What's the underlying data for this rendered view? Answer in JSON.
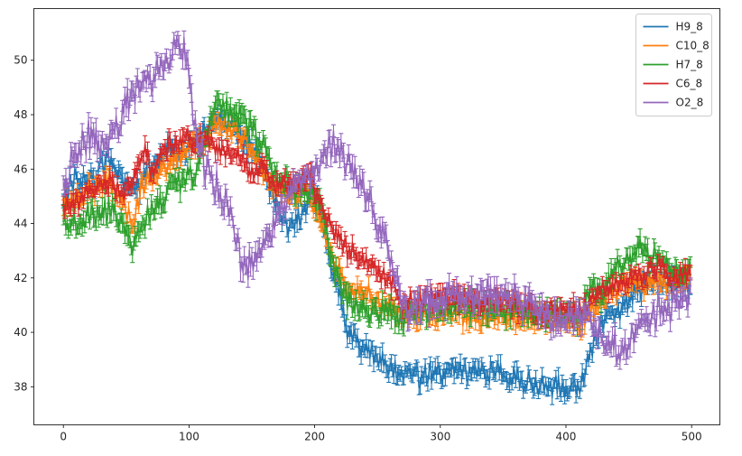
{
  "chart_data": {
    "type": "line",
    "title": "",
    "xlabel": "",
    "ylabel": "",
    "xlim": [
      -23.5,
      522.5
    ],
    "ylim": [
      36.6,
      51.9
    ],
    "xticks": [
      0,
      100,
      200,
      300,
      400,
      500
    ],
    "yticks": [
      38,
      40,
      42,
      44,
      46,
      48,
      50
    ],
    "grid": false,
    "error_bars": true,
    "legend_position": "top-right",
    "n_points": 500,
    "series": [
      {
        "name": "H9_8",
        "color": "#1f77b4",
        "anchors": [
          [
            0,
            45.0
          ],
          [
            12,
            45.8
          ],
          [
            24,
            45.6
          ],
          [
            36,
            46.4
          ],
          [
            48,
            45.6
          ],
          [
            60,
            45.3
          ],
          [
            72,
            46.2
          ],
          [
            84,
            46.8
          ],
          [
            96,
            46.6
          ],
          [
            110,
            47.2
          ],
          [
            122,
            47.8
          ],
          [
            134,
            47.6
          ],
          [
            146,
            47.0
          ],
          [
            158,
            46.4
          ],
          [
            170,
            44.6
          ],
          [
            180,
            43.8
          ],
          [
            190,
            44.2
          ],
          [
            200,
            45.2
          ],
          [
            208,
            43.8
          ],
          [
            214,
            42.4
          ],
          [
            220,
            41.6
          ],
          [
            226,
            40.0
          ],
          [
            236,
            39.6
          ],
          [
            250,
            39.0
          ],
          [
            262,
            38.6
          ],
          [
            275,
            38.4
          ],
          [
            300,
            38.5
          ],
          [
            330,
            38.6
          ],
          [
            360,
            38.3
          ],
          [
            390,
            38.0
          ],
          [
            410,
            38.0
          ],
          [
            420,
            39.2
          ],
          [
            430,
            40.6
          ],
          [
            440,
            40.6
          ],
          [
            455,
            41.6
          ],
          [
            470,
            41.8
          ],
          [
            485,
            41.8
          ],
          [
            498,
            41.7
          ]
        ],
        "noise": 0.35,
        "err": 0.22
      },
      {
        "name": "C10_8",
        "color": "#ff7f0e",
        "anchors": [
          [
            0,
            44.6
          ],
          [
            12,
            45.0
          ],
          [
            24,
            45.3
          ],
          [
            36,
            45.7
          ],
          [
            48,
            44.6
          ],
          [
            56,
            44.0
          ],
          [
            62,
            45.4
          ],
          [
            72,
            45.8
          ],
          [
            84,
            46.2
          ],
          [
            96,
            46.6
          ],
          [
            110,
            47.0
          ],
          [
            122,
            47.6
          ],
          [
            134,
            47.5
          ],
          [
            146,
            47.1
          ],
          [
            158,
            46.0
          ],
          [
            170,
            45.0
          ],
          [
            180,
            45.0
          ],
          [
            195,
            45.2
          ],
          [
            205,
            44.0
          ],
          [
            214,
            42.8
          ],
          [
            222,
            42.0
          ],
          [
            232,
            41.6
          ],
          [
            250,
            41.2
          ],
          [
            268,
            40.7
          ],
          [
            290,
            40.6
          ],
          [
            320,
            40.6
          ],
          [
            350,
            40.6
          ],
          [
            380,
            40.5
          ],
          [
            410,
            40.3
          ],
          [
            420,
            40.8
          ],
          [
            435,
            41.4
          ],
          [
            450,
            41.8
          ],
          [
            470,
            41.9
          ],
          [
            485,
            41.8
          ],
          [
            498,
            42.0
          ]
        ],
        "noise": 0.3,
        "err": 0.22
      },
      {
        "name": "H7_8",
        "color": "#2ca02c",
        "anchors": [
          [
            0,
            44.2
          ],
          [
            12,
            43.9
          ],
          [
            24,
            44.3
          ],
          [
            36,
            44.6
          ],
          [
            48,
            43.8
          ],
          [
            55,
            43.0
          ],
          [
            62,
            44.0
          ],
          [
            72,
            44.5
          ],
          [
            84,
            45.2
          ],
          [
            96,
            45.6
          ],
          [
            104,
            45.8
          ],
          [
            112,
            47.0
          ],
          [
            120,
            48.4
          ],
          [
            130,
            48.2
          ],
          [
            140,
            48.0
          ],
          [
            150,
            47.6
          ],
          [
            160,
            46.8
          ],
          [
            170,
            45.6
          ],
          [
            180,
            45.4
          ],
          [
            195,
            45.0
          ],
          [
            205,
            44.8
          ],
          [
            214,
            42.6
          ],
          [
            222,
            41.4
          ],
          [
            232,
            41.0
          ],
          [
            250,
            40.8
          ],
          [
            268,
            40.6
          ],
          [
            290,
            40.8
          ],
          [
            320,
            41.0
          ],
          [
            350,
            40.8
          ],
          [
            380,
            40.7
          ],
          [
            410,
            40.6
          ],
          [
            420,
            41.4
          ],
          [
            430,
            41.6
          ],
          [
            445,
            42.6
          ],
          [
            460,
            43.0
          ],
          [
            475,
            42.6
          ],
          [
            485,
            42.2
          ],
          [
            498,
            42.4
          ]
        ],
        "noise": 0.35,
        "err": 0.25
      },
      {
        "name": "C6_8",
        "color": "#d62728",
        "anchors": [
          [
            0,
            44.6
          ],
          [
            12,
            44.8
          ],
          [
            24,
            45.3
          ],
          [
            36,
            45.5
          ],
          [
            48,
            45.0
          ],
          [
            56,
            45.8
          ],
          [
            64,
            46.6
          ],
          [
            72,
            46.0
          ],
          [
            84,
            46.9
          ],
          [
            96,
            47.2
          ],
          [
            110,
            47.0
          ],
          [
            122,
            46.8
          ],
          [
            134,
            46.6
          ],
          [
            146,
            46.1
          ],
          [
            158,
            46.0
          ],
          [
            170,
            45.3
          ],
          [
            180,
            45.5
          ],
          [
            195,
            45.8
          ],
          [
            205,
            44.8
          ],
          [
            214,
            44.0
          ],
          [
            222,
            43.3
          ],
          [
            232,
            42.8
          ],
          [
            250,
            42.2
          ],
          [
            262,
            41.8
          ],
          [
            270,
            41.0
          ],
          [
            290,
            41.2
          ],
          [
            320,
            41.3
          ],
          [
            350,
            41.1
          ],
          [
            380,
            40.8
          ],
          [
            410,
            40.8
          ],
          [
            420,
            41.2
          ],
          [
            430,
            41.6
          ],
          [
            445,
            41.8
          ],
          [
            460,
            42.2
          ],
          [
            475,
            42.4
          ],
          [
            485,
            41.9
          ],
          [
            498,
            42.1
          ]
        ],
        "noise": 0.3,
        "err": 0.2
      },
      {
        "name": "O2_8",
        "color": "#9467bd",
        "anchors": [
          [
            0,
            45.4
          ],
          [
            10,
            46.4
          ],
          [
            20,
            47.2
          ],
          [
            30,
            46.8
          ],
          [
            40,
            47.4
          ],
          [
            50,
            48.4
          ],
          [
            60,
            49.2
          ],
          [
            70,
            49.0
          ],
          [
            80,
            49.8
          ],
          [
            90,
            50.6
          ],
          [
            98,
            50.2
          ],
          [
            104,
            47.6
          ],
          [
            112,
            46.2
          ],
          [
            124,
            45.2
          ],
          [
            134,
            44.4
          ],
          [
            142,
            42.4
          ],
          [
            150,
            42.6
          ],
          [
            160,
            43.4
          ],
          [
            170,
            44.2
          ],
          [
            180,
            45.0
          ],
          [
            190,
            45.6
          ],
          [
            200,
            45.8
          ],
          [
            206,
            46.2
          ],
          [
            214,
            47.0
          ],
          [
            222,
            46.4
          ],
          [
            232,
            45.8
          ],
          [
            242,
            45.0
          ],
          [
            252,
            43.8
          ],
          [
            262,
            42.6
          ],
          [
            270,
            40.8
          ],
          [
            290,
            41.0
          ],
          [
            320,
            41.3
          ],
          [
            350,
            41.4
          ],
          [
            370,
            41.0
          ],
          [
            390,
            40.6
          ],
          [
            410,
            40.6
          ],
          [
            420,
            40.4
          ],
          [
            432,
            39.6
          ],
          [
            445,
            39.4
          ],
          [
            460,
            40.2
          ],
          [
            475,
            40.8
          ],
          [
            485,
            41.0
          ],
          [
            498,
            41.2
          ]
        ],
        "noise": 0.45,
        "err": 0.25
      }
    ]
  }
}
